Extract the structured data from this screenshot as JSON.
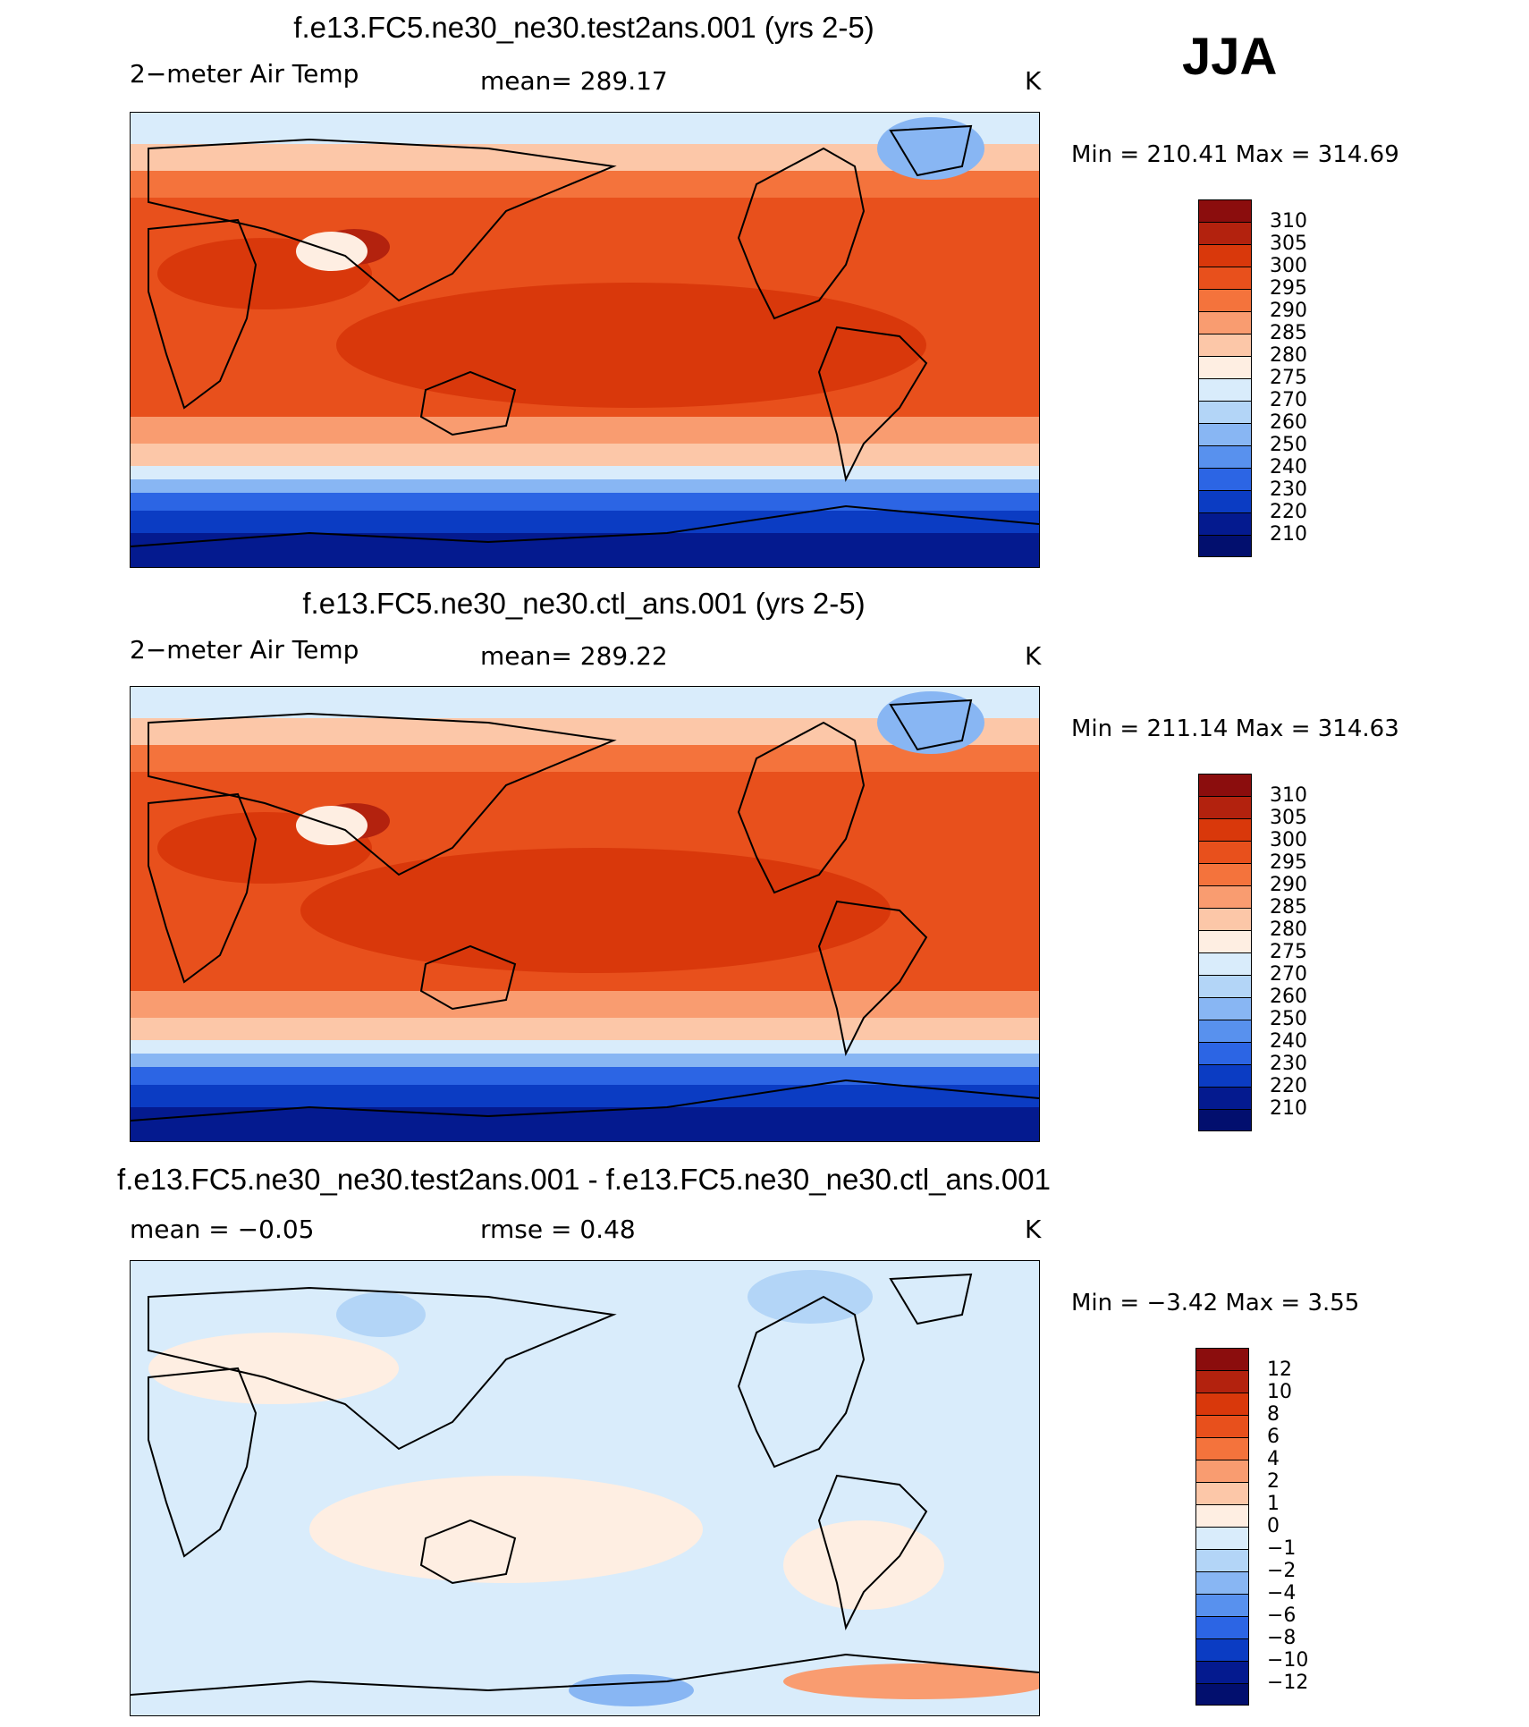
{
  "season": "JJA",
  "chart_data": [
    {
      "type": "heatmap",
      "title": "f.e13.FC5.ne30_ne30.test2ans.001 (yrs 2-5)",
      "variable": "2−meter Air Temp",
      "stat_left": "",
      "stat_mid": "mean=  289.17",
      "units": "K",
      "mean": 289.17,
      "min": 210.41,
      "max": 314.69,
      "minmax_text": "Min  =  210.41  Max  =  314.69",
      "colorbar_levels": [
        "310",
        "305",
        "300",
        "295",
        "290",
        "285",
        "280",
        "275",
        "270",
        "260",
        "250",
        "240",
        "230",
        "220",
        "210"
      ],
      "colorbar_colors": [
        "#8b0d0d",
        "#b3220e",
        "#d9380b",
        "#e8501c",
        "#f4733c",
        "#f99c70",
        "#fcc7a8",
        "#feeee2",
        "#d9ecfb",
        "#b3d5f7",
        "#88b6f3",
        "#5891ee",
        "#2c65e4",
        "#0b3cc3",
        "#041a8f",
        "#020f6e"
      ]
    },
    {
      "type": "heatmap",
      "title": "f.e13.FC5.ne30_ne30.ctl_ans.001 (yrs 2-5)",
      "variable": "2−meter Air Temp",
      "stat_left": "",
      "stat_mid": "mean=  289.22",
      "units": "K",
      "mean": 289.22,
      "min": 211.14,
      "max": 314.63,
      "minmax_text": "Min  =  211.14  Max  =  314.63",
      "colorbar_levels": [
        "310",
        "305",
        "300",
        "295",
        "290",
        "285",
        "280",
        "275",
        "270",
        "260",
        "250",
        "240",
        "230",
        "220",
        "210"
      ],
      "colorbar_colors": [
        "#8b0d0d",
        "#b3220e",
        "#d9380b",
        "#e8501c",
        "#f4733c",
        "#f99c70",
        "#fcc7a8",
        "#feeee2",
        "#d9ecfb",
        "#b3d5f7",
        "#88b6f3",
        "#5891ee",
        "#2c65e4",
        "#0b3cc3",
        "#041a8f",
        "#020f6e"
      ]
    },
    {
      "type": "heatmap",
      "title": "f.e13.FC5.ne30_ne30.test2ans.001 - f.e13.FC5.ne30_ne30.ctl_ans.001",
      "variable": "",
      "stat_left": "mean =    −0.05",
      "stat_mid": "rmse =     0.48",
      "units": "K",
      "mean": -0.05,
      "rmse": 0.48,
      "min": -3.42,
      "max": 3.55,
      "minmax_text": "Min  =    −3.42  Max  =      3.55",
      "colorbar_levels": [
        "12",
        "10",
        "8",
        "6",
        "4",
        "2",
        "1",
        "0",
        "−1",
        "−2",
        "−4",
        "−6",
        "−8",
        "−10",
        "−12"
      ],
      "colorbar_colors": [
        "#8b0d0d",
        "#b3220e",
        "#d9380b",
        "#e8501c",
        "#f4733c",
        "#f99c70",
        "#fcc7a8",
        "#feeee2",
        "#d9ecfb",
        "#b3d5f7",
        "#88b6f3",
        "#5891ee",
        "#2c65e4",
        "#0b3cc3",
        "#041a8f",
        "#020f6e"
      ]
    }
  ]
}
